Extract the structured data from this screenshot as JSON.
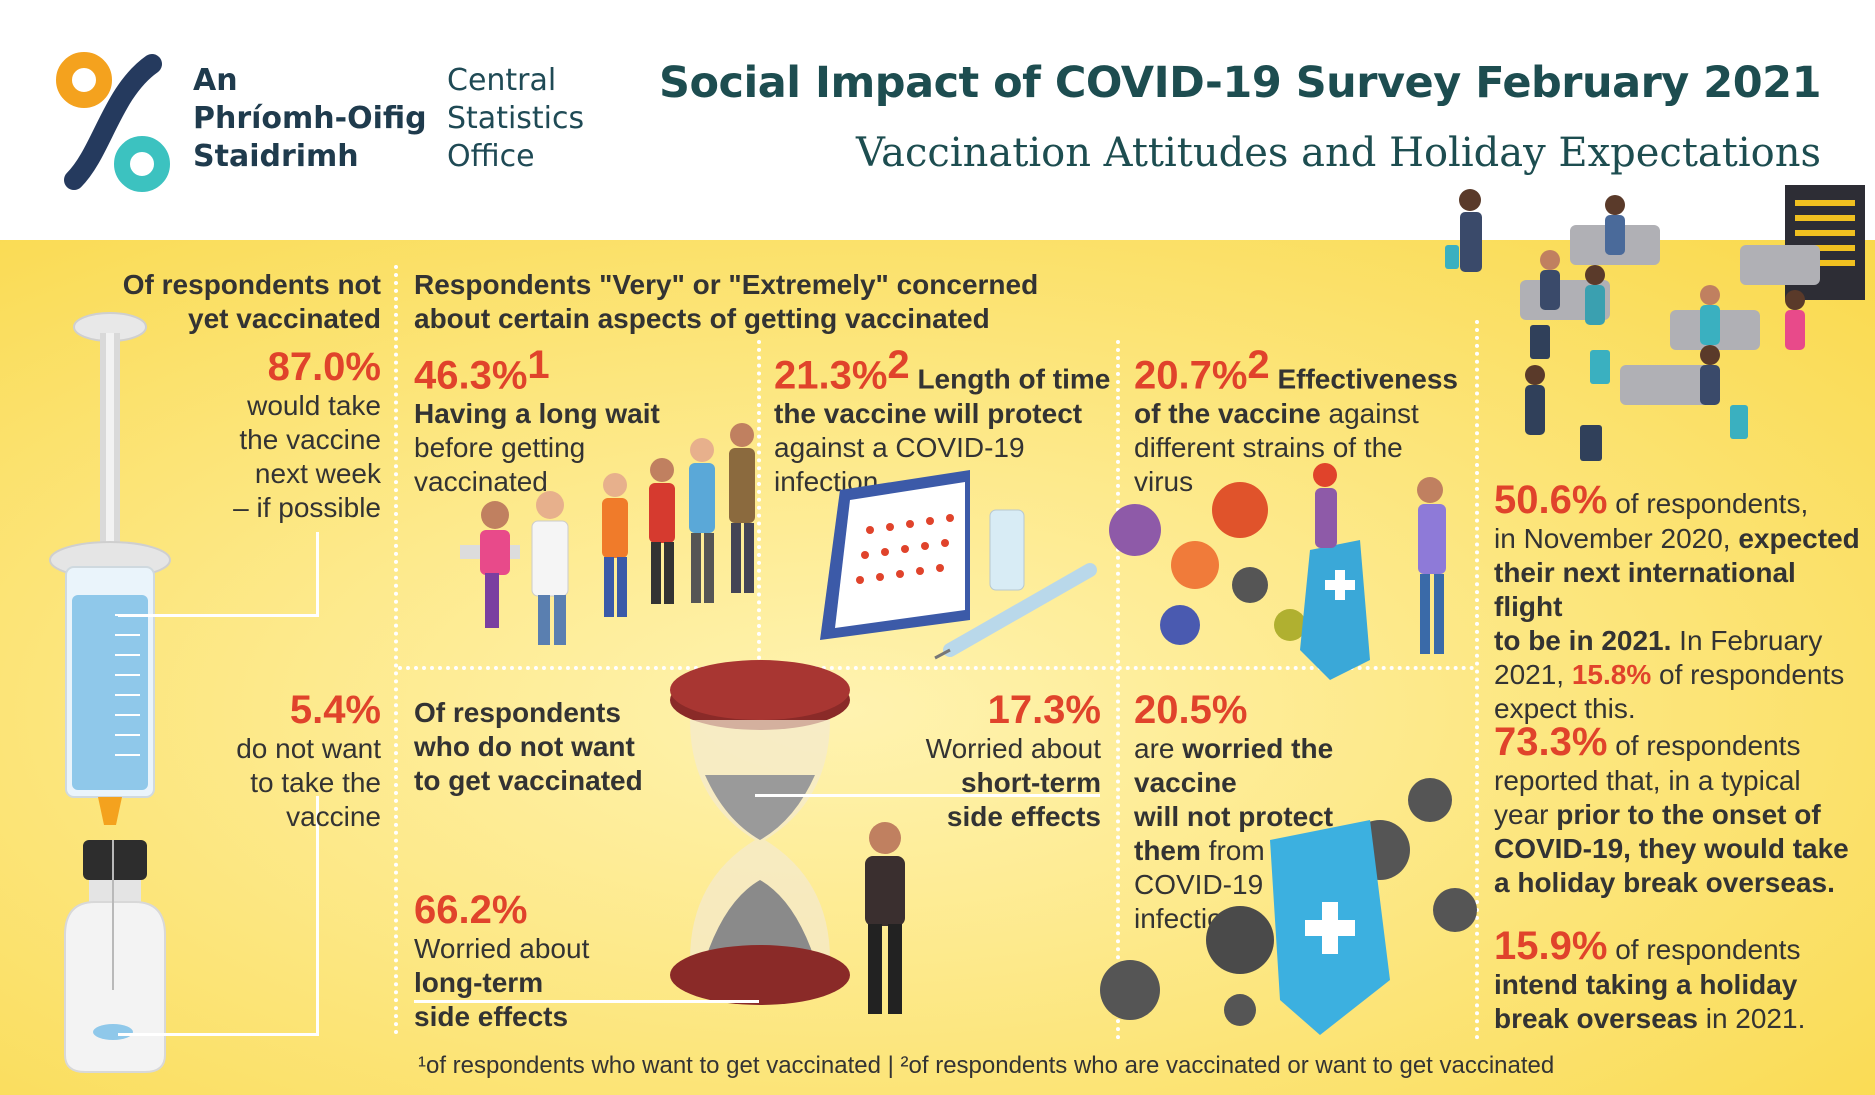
{
  "header": {
    "logo_ga": [
      "An",
      "Phríomh-Oifig",
      "Staidrimh"
    ],
    "logo_en": [
      "Central",
      "Statistics",
      "Office"
    ],
    "title": "Social Impact of COVID-19 Survey February 2021",
    "subtitle": "Vaccination Attitudes and Holiday Expectations"
  },
  "left": {
    "heading": [
      "Of respondents not",
      "yet vaccinated"
    ],
    "stat1": {
      "value": "87.0%",
      "lines": [
        "would take",
        "the vaccine",
        "next week",
        "– if possible"
      ]
    },
    "stat2": {
      "value": "5.4%",
      "lines": [
        "do not want",
        "to take the",
        "vaccine"
      ]
    }
  },
  "concern": {
    "heading": [
      "Respondents \"Very\" or \"Extremely\" concerned",
      "about certain aspects of getting vaccinated"
    ],
    "items": [
      {
        "value": "46.3%",
        "sup": "1",
        "bold_after": "",
        "line1_bold": "Having a long wait",
        "lines": [
          "before getting",
          "vaccinated"
        ]
      },
      {
        "value": "21.3%",
        "sup": "2",
        "bold_after": "Length of time",
        "line1_bold": "the vaccine will protect",
        "lines": [
          "against a COVID-19",
          "infection"
        ]
      },
      {
        "value": "20.7%",
        "sup": "2",
        "bold_after": "Effectiveness",
        "line1_bold": "of the vaccine",
        "line1_rest": " against",
        "lines": [
          "different strains of the",
          "virus"
        ]
      }
    ]
  },
  "not_want": {
    "heading": [
      "Of respondents",
      "who do not want",
      "to get vaccinated"
    ],
    "short_term": {
      "value": "17.3%",
      "lines": [
        "Worried about"
      ],
      "bold_lines": [
        "short-term",
        "side effects"
      ]
    },
    "long_term": {
      "value": "66.2%",
      "lines": [
        "Worried about"
      ],
      "bold_lines": [
        "long-term",
        "side effects"
      ]
    },
    "protect": {
      "value": "20.5%",
      "pre": "are ",
      "bold1": "worried the vaccine",
      "bold2": "will not protect",
      "bold3": "them",
      "rest3": " from a",
      "lines": [
        "COVID-19",
        "infection"
      ]
    }
  },
  "holiday": {
    "s1": {
      "value": "50.6%",
      "t1": " of respondents,",
      "t2": "in November 2020, ",
      "b2": "expected",
      "b3": "their next international flight",
      "b4": "to be in 2021.",
      "t4": " In February",
      "t5": "2021, ",
      "v5": "15.8%",
      "t5b": " of respondents",
      "t6": "expect this."
    },
    "s2": {
      "value": "73.3%",
      "t1": " of respondents",
      "t2": "reported that, in a typical",
      "t3": "year ",
      "b3": "prior to the onset of",
      "b4": "COVID-19, they would take",
      "b5": "a holiday break overseas."
    },
    "s3": {
      "value": "15.9%",
      "t1": " of respondents",
      "b2": "intend taking a holiday",
      "b3": "break overseas",
      "t3": " in 2021."
    }
  },
  "footnote": "¹of respondents who want to get vaccinated  |  ²of respondents who are vaccinated or want to get vaccinated",
  "colors": {
    "accent": "#e0432b",
    "title": "#1d4d50",
    "panel": "#f9d94c"
  }
}
